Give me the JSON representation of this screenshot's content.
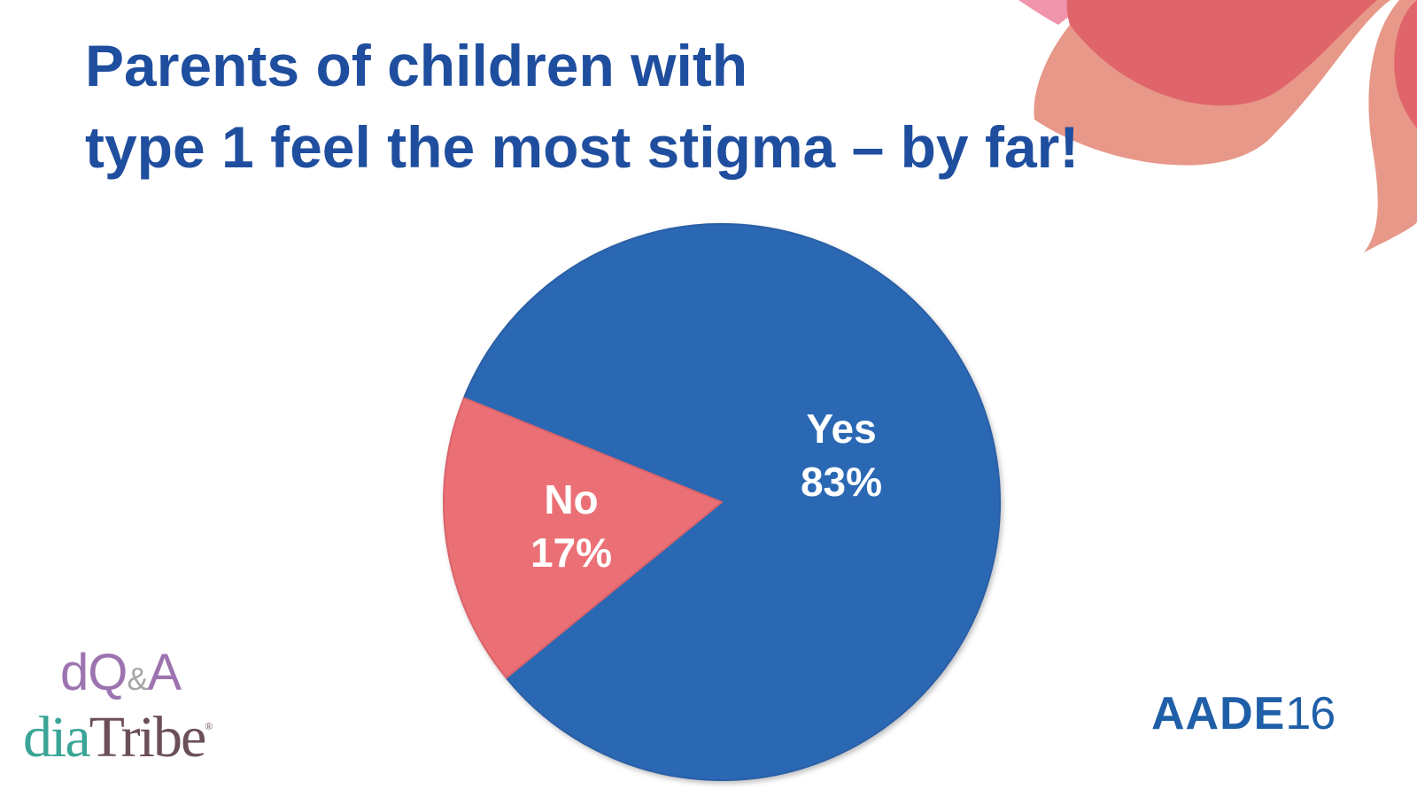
{
  "slide": {
    "title_lines": [
      "Parents of children with",
      "type 1 feel the most stigma – by far!"
    ]
  },
  "colors": {
    "title": "#1f4e9f",
    "yes": "#2a68b4",
    "no": "#eb6f74",
    "deco_dark": "#e0656b",
    "deco_light": "#e89888",
    "deco_pink": "#ef94aa"
  },
  "logos": {
    "dqa": {
      "d": "dQ",
      "amp": "&",
      "a": "A"
    },
    "diatribe": {
      "dia": "dia",
      "tribe": "Tribe",
      "reg": "®"
    },
    "aade": {
      "name": "AADE",
      "year": "16"
    }
  },
  "chart_data": {
    "type": "pie",
    "title": "Parents of children with type 1 feel the most stigma – by far!",
    "slices": [
      {
        "label": "Yes",
        "value": 83,
        "display": "83%",
        "color": "#2a68b4"
      },
      {
        "label": "No",
        "value": 17,
        "display": "17%",
        "color": "#eb6f74"
      }
    ],
    "legend": "none",
    "labels_position": "inside"
  }
}
